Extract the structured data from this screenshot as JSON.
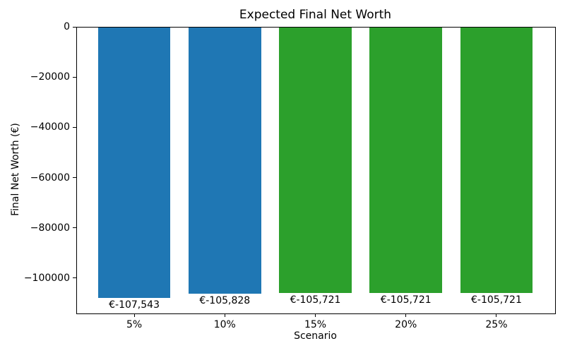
{
  "chart_data": {
    "type": "bar",
    "title": "Expected Final Net Worth",
    "xlabel": "Scenario",
    "ylabel": "Final Net Worth (€)",
    "categories": [
      "5%",
      "10%",
      "15%",
      "20%",
      "25%"
    ],
    "values": [
      -107543,
      -105828,
      -105721,
      -105721,
      -105721
    ],
    "bar_value_labels": [
      "€-107,543",
      "€-105,828",
      "€-105,721",
      "€-105,721",
      "€-105,721"
    ],
    "bar_colors": [
      "#1f77b4",
      "#1f77b4",
      "#2ca02c",
      "#2ca02c",
      "#2ca02c"
    ],
    "ylim": [
      -113800,
      0
    ],
    "yticks": [
      0,
      -20000,
      -40000,
      -60000,
      -80000,
      -100000
    ],
    "ytick_labels": [
      "0",
      "−20000",
      "−40000",
      "−60000",
      "−80000",
      "−100000"
    ],
    "grid": false,
    "legend": "none",
    "colors": {
      "blue_bar": "#1f77b4",
      "green_bar": "#2ca02c",
      "axis": "#000000",
      "background": "#ffffff"
    }
  }
}
